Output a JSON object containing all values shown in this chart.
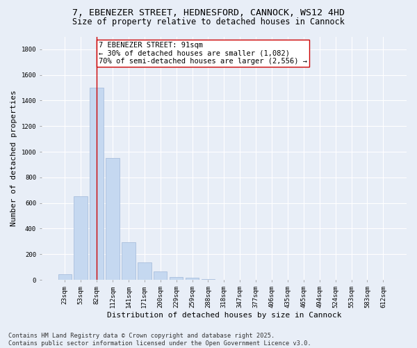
{
  "title_line1": "7, EBENEZER STREET, HEDNESFORD, CANNOCK, WS12 4HD",
  "title_line2": "Size of property relative to detached houses in Cannock",
  "xlabel": "Distribution of detached houses by size in Cannock",
  "ylabel": "Number of detached properties",
  "categories": [
    "23sqm",
    "53sqm",
    "82sqm",
    "112sqm",
    "141sqm",
    "171sqm",
    "200sqm",
    "229sqm",
    "259sqm",
    "288sqm",
    "318sqm",
    "347sqm",
    "377sqm",
    "406sqm",
    "435sqm",
    "465sqm",
    "494sqm",
    "524sqm",
    "553sqm",
    "583sqm",
    "612sqm"
  ],
  "values": [
    45,
    650,
    1500,
    950,
    295,
    135,
    65,
    22,
    15,
    5,
    2,
    0,
    0,
    0,
    0,
    0,
    0,
    0,
    0,
    0,
    0
  ],
  "bar_color": "#c5d8f0",
  "bar_edge_color": "#a0b8d8",
  "vline_x": 2.0,
  "vline_color": "#cc0000",
  "annotation_text": "7 EBENEZER STREET: 91sqm\n← 30% of detached houses are smaller (1,082)\n70% of semi-detached houses are larger (2,556) →",
  "annotation_box_color": "#ffffff",
  "annotation_box_edge_color": "#cc0000",
  "ylim": [
    0,
    1900
  ],
  "yticks": [
    0,
    200,
    400,
    600,
    800,
    1000,
    1200,
    1400,
    1600,
    1800
  ],
  "background_color": "#e8eef7",
  "footer_line1": "Contains HM Land Registry data © Crown copyright and database right 2025.",
  "footer_line2": "Contains public sector information licensed under the Open Government Licence v3.0.",
  "title_fontsize": 9.5,
  "subtitle_fontsize": 8.5,
  "axis_label_fontsize": 8,
  "tick_fontsize": 6.5,
  "annotation_fontsize": 7.5,
  "footer_fontsize": 6.2
}
